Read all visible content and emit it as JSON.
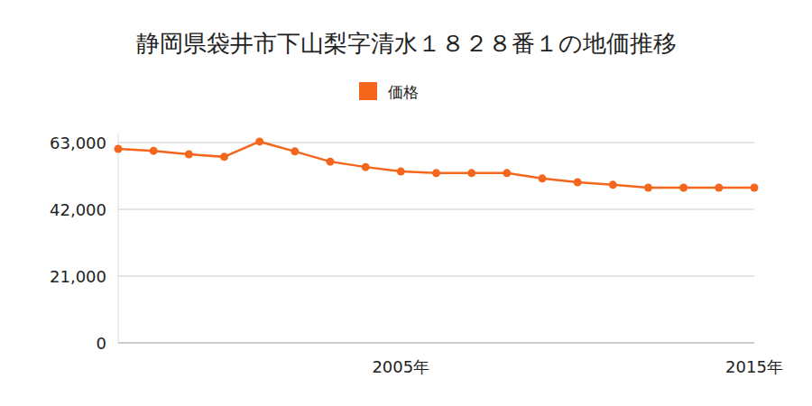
{
  "chart_data": {
    "type": "line",
    "title": "静岡県袋井市下山梨字清水１８２８番１の地価推移",
    "categories": [
      null,
      null,
      null,
      null,
      null,
      null,
      null,
      null,
      "2005年",
      null,
      null,
      null,
      null,
      null,
      null,
      null,
      null,
      null,
      "2015年"
    ],
    "series": [
      {
        "name": "価格",
        "color": "#f4661b",
        "marker": "circle",
        "values": [
          61000,
          60400,
          59300,
          58500,
          63300,
          60200,
          57000,
          55300,
          53900,
          53400,
          53400,
          53400,
          51700,
          50500,
          49700,
          48800,
          48800,
          48800,
          48800
        ]
      }
    ],
    "ylim": [
      0,
      66000
    ],
    "yticks": [
      0,
      {
        "value": 21000,
        "label": "21,000"
      },
      {
        "value": 42000,
        "label": "42,000"
      },
      {
        "value": 63000,
        "label": "63,000"
      }
    ],
    "grid": true,
    "legend": "top"
  }
}
